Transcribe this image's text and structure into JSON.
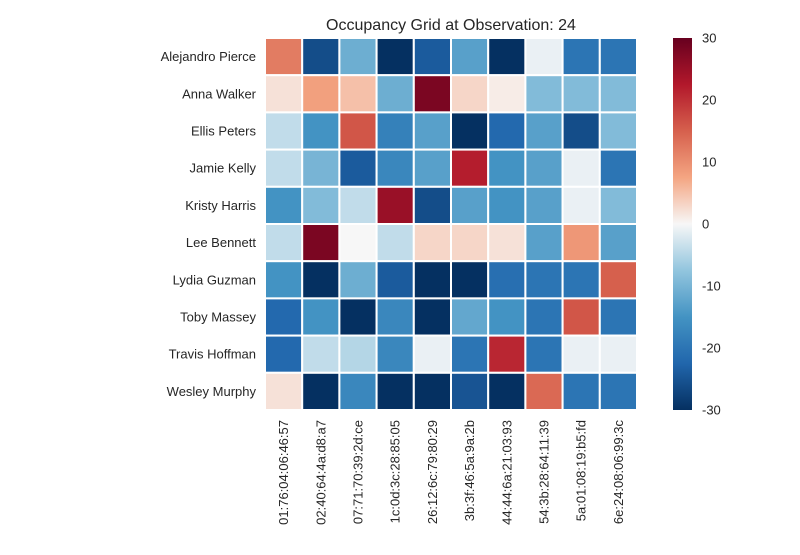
{
  "chart_data": {
    "type": "heatmap",
    "title": "Occupancy Grid at Observation: 24",
    "xlabel": "",
    "ylabel": "",
    "rows": [
      "Alejandro Pierce",
      "Anna Walker",
      "Ellis Peters",
      "Jamie Kelly",
      "Kristy Harris",
      "Lee Bennett",
      "Lydia Guzman",
      "Toby Massey",
      "Travis Hoffman",
      "Wesley Murphy"
    ],
    "columns": [
      "01:76:04:06:46:57",
      "02:40:64:4a:d8:a7",
      "07:71:70:39:2d:ce",
      "1c:0d:3c:28:85:05",
      "26:12:6c:79:80:29",
      "3b:3f:46:5a:9a:2b",
      "44:44:6a:21:03:93",
      "54:3b:28:64:11:39",
      "5a:01:08:19:b5:fd",
      "6e:24:08:06:99:3c"
    ],
    "values": [
      [
        12,
        -26,
        -11,
        -30,
        -24,
        -13,
        -30,
        -1,
        -20,
        -20
      ],
      [
        2,
        8,
        5,
        -11,
        28,
        3,
        1,
        -9,
        -9,
        -9
      ],
      [
        -4,
        -15,
        16,
        -18,
        -13,
        -30,
        -22,
        -13,
        -26,
        -9
      ],
      [
        -4,
        -10,
        -24,
        -17,
        -13,
        22,
        -15,
        -13,
        -1,
        -20
      ],
      [
        -15,
        -9,
        -4,
        25,
        -26,
        -13,
        -15,
        -13,
        -1,
        -9
      ],
      [
        -4,
        28,
        0,
        -4,
        3,
        3,
        2,
        -13,
        9,
        -13
      ],
      [
        -15,
        -30,
        -11,
        -24,
        -30,
        -30,
        -21,
        -20,
        -20,
        15
      ],
      [
        -22,
        -15,
        -30,
        -17,
        -30,
        -12,
        -15,
        -20,
        16,
        -20
      ],
      [
        -22,
        -4,
        -5,
        -17,
        -1,
        -20,
        21,
        -20,
        -1,
        -1
      ],
      [
        2,
        -30,
        -17,
        -30,
        -30,
        -25,
        -30,
        14,
        -20,
        -20
      ]
    ],
    "colorbar": {
      "min": -30,
      "max": 30,
      "ticks": [
        30,
        20,
        10,
        0,
        -10,
        -20,
        -30
      ],
      "colormap": "RdBu_r"
    },
    "grid": false
  }
}
